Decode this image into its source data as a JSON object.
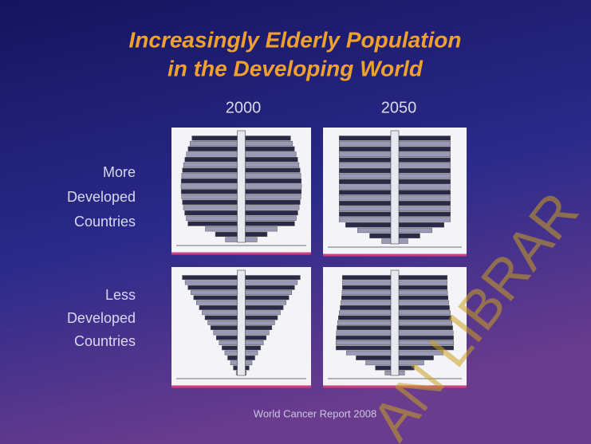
{
  "slide": {
    "title": [
      "Increasingly Elderly Population",
      "in the Developing World"
    ],
    "columns": [
      "2000",
      "2050"
    ],
    "rows": [
      [
        "More",
        "Developed",
        "Countries"
      ],
      [
        "Less",
        "Developed",
        "Countries"
      ]
    ],
    "source": "World Cancer Report 2008",
    "watermark": "AN LIBRAR"
  }
}
